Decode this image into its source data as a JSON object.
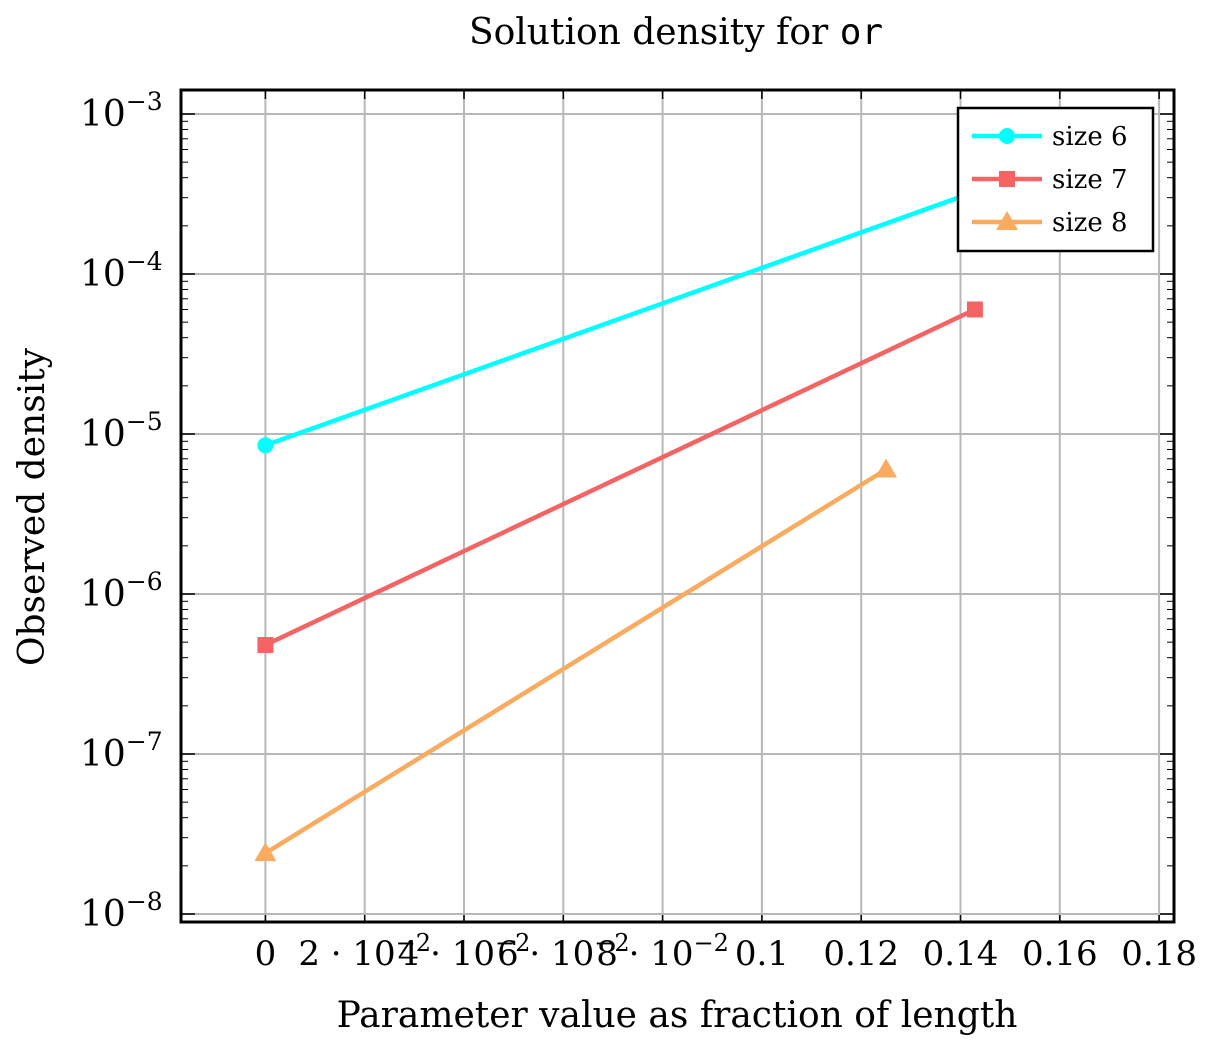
{
  "chart_data": {
    "type": "line",
    "title": "Solution density for ",
    "title_code": "or",
    "xlabel": "Parameter value as fraction of length",
    "ylabel": "Observed density",
    "xlim": [
      -0.017,
      0.183
    ],
    "ylim_log10": [
      -8.05,
      -2.85
    ],
    "yscale": "log",
    "grid": true,
    "legend_position": "top-right",
    "x_ticks": [
      {
        "value": 0,
        "label": "0"
      },
      {
        "value": 0.02,
        "label": "2 · 10"
      },
      {
        "value": 0.04,
        "label": "4 · 10"
      },
      {
        "value": 0.06,
        "label": "6 · 10"
      },
      {
        "value": 0.08,
        "label": "8 · 10"
      },
      {
        "value": 0.1,
        "label": "0.1"
      },
      {
        "value": 0.12,
        "label": "0.12"
      },
      {
        "value": 0.14,
        "label": "0.14"
      },
      {
        "value": 0.16,
        "label": "0.16"
      },
      {
        "value": 0.18,
        "label": "0.18"
      }
    ],
    "x_tick_exponent": "−2",
    "y_ticks": [
      {
        "exp": -3,
        "base": "10",
        "sup": "−3"
      },
      {
        "exp": -4,
        "base": "10",
        "sup": "−4"
      },
      {
        "exp": -5,
        "base": "10",
        "sup": "−5"
      },
      {
        "exp": -6,
        "base": "10",
        "sup": "−6"
      },
      {
        "exp": -7,
        "base": "10",
        "sup": "−7"
      },
      {
        "exp": -8,
        "base": "10",
        "sup": "−8"
      }
    ],
    "series": [
      {
        "name": "size 6",
        "color": "#00ffff",
        "marker": "circle",
        "x": [
          0,
          0.1667
        ],
        "y": [
          8.5e-06,
          0.0006
        ]
      },
      {
        "name": "size 7",
        "color": "#f46464",
        "marker": "square",
        "x": [
          0,
          0.1429
        ],
        "y": [
          4.8e-07,
          6e-05
        ]
      },
      {
        "name": "size 8",
        "color": "#f9ab5f",
        "marker": "triangle",
        "x": [
          0,
          0.125
        ],
        "y": [
          2.4e-08,
          6e-06
        ]
      }
    ]
  }
}
